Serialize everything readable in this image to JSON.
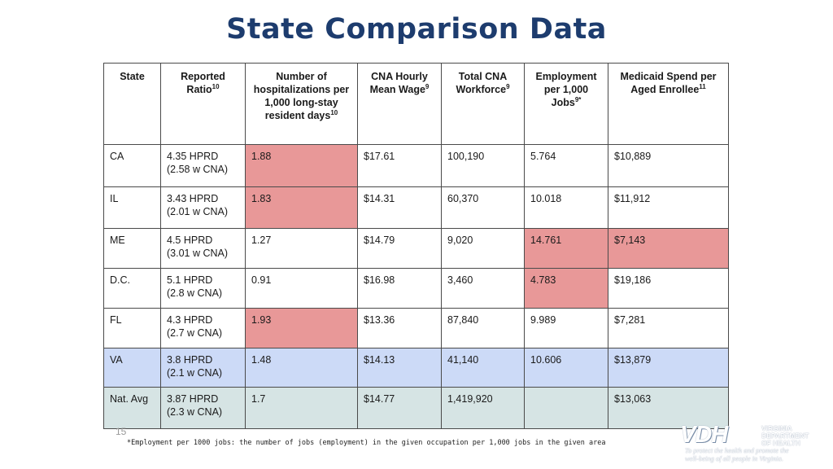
{
  "title": "State Comparison Data",
  "table": {
    "headers": [
      {
        "text": "State"
      },
      {
        "text": "Reported Ratio",
        "sup": "10"
      },
      {
        "text": "Number of hospitalizations per 1,000 long-stay resident days",
        "sup": "10"
      },
      {
        "text": "CNA Hourly Mean Wage",
        "sup": "9"
      },
      {
        "text": "Total CNA Workforce",
        "sup": "9"
      },
      {
        "text": "Employment per 1,000 Jobs",
        "sup": "9*"
      },
      {
        "text": "Medicaid Spend per Aged Enrollee",
        "sup": "11"
      }
    ],
    "rows": [
      {
        "state": "CA",
        "ratio_line1": "4.35 HPRD",
        "ratio_line2": "(2.58 w CNA)",
        "hospitalizations": "1.88",
        "wage": "$17.61",
        "workforce": "100,190",
        "employment": "5.764",
        "medicaid": "$10,889"
      },
      {
        "state": "IL",
        "ratio_line1": "3.43 HPRD",
        "ratio_line2": "(2.01 w CNA)",
        "hospitalizations": "1.83",
        "wage": "$14.31",
        "workforce": "60,370",
        "employment": "10.018",
        "medicaid": "$11,912"
      },
      {
        "state": "ME",
        "ratio_line1": "4.5 HPRD",
        "ratio_line2": "(3.01 w CNA)",
        "hospitalizations": "1.27",
        "wage": "$14.79",
        "workforce": "9,020",
        "employment": "14.761",
        "medicaid": "$7,143"
      },
      {
        "state": "D.C.",
        "ratio_line1": "5.1 HPRD",
        "ratio_line2": "(2.8 w CNA)",
        "hospitalizations": "0.91",
        "wage": "$16.98",
        "workforce": "3,460",
        "employment": "4.783",
        "medicaid": "$19,186"
      },
      {
        "state": "FL",
        "ratio_line1": "4.3 HPRD",
        "ratio_line2": "(2.7 w CNA)",
        "hospitalizations": "1.93",
        "wage": "$13.36",
        "workforce": "87,840",
        "employment": "9.989",
        "medicaid": "$7,281"
      },
      {
        "state": "VA",
        "ratio_line1": "3.8 HPRD",
        "ratio_line2": "(2.1 w CNA)",
        "hospitalizations": "1.48",
        "wage": "$14.13",
        "workforce": "41,140",
        "employment": "10.606",
        "medicaid": "$13,879"
      },
      {
        "state": "Nat. Avg",
        "ratio_line1": "3.87 HPRD",
        "ratio_line2": "(2.3 w CNA)",
        "hospitalizations": "1.7",
        "wage": "$14.77",
        "workforce": "1,419,920",
        "employment": "",
        "medicaid": "$13,063"
      }
    ]
  },
  "colors": {
    "title": "#1d3c6e",
    "highlight": "#e89898",
    "virginia_row": "#ccdaf7",
    "national_row": "#d6e4e4"
  },
  "page_number": "15",
  "footnote": "*Employment per 1000 jobs: the number of jobs (employment) in the given occupation per 1,000 jobs in the given area",
  "logo": {
    "letters": "VDH",
    "org_lines": [
      "VIRGINIA",
      "DEPARTMENT",
      "OF HEALTH"
    ],
    "tagline_line1": "To protect the health and promote the",
    "tagline_line2": "well-being of all people in Virginia."
  }
}
